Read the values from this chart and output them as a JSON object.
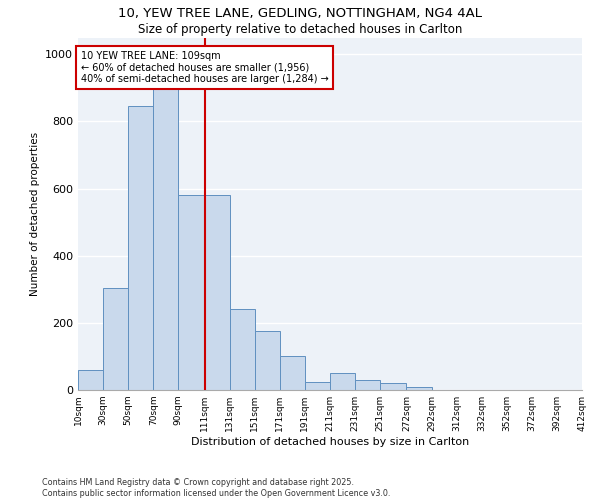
{
  "title_line1": "10, YEW TREE LANE, GEDLING, NOTTINGHAM, NG4 4AL",
  "title_line2": "Size of property relative to detached houses in Carlton",
  "xlabel": "Distribution of detached houses by size in Carlton",
  "ylabel": "Number of detached properties",
  "property_label": "10 YEW TREE LANE: 109sqm",
  "annotation_line2": "← 60% of detached houses are smaller (1,956)",
  "annotation_line3": "40% of semi-detached houses are larger (1,284) →",
  "bar_color": "#c9d9ec",
  "bar_edge_color": "#6090c0",
  "vline_color": "#cc0000",
  "annotation_box_edgecolor": "#cc0000",
  "background_color": "#edf2f8",
  "bar_heights": [
    60,
    305,
    845,
    920,
    580,
    580,
    240,
    175,
    100,
    25,
    50,
    30,
    20,
    10,
    0,
    0,
    0,
    0,
    0,
    0
  ],
  "bin_edges": [
    10,
    30,
    50,
    70,
    90,
    111,
    131,
    151,
    171,
    191,
    211,
    231,
    251,
    272,
    292,
    312,
    332,
    352,
    372,
    392,
    412
  ],
  "tick_labels": [
    "10sqm",
    "30sqm",
    "50sqm",
    "70sqm",
    "90sqm",
    "111sqm",
    "131sqm",
    "151sqm",
    "171sqm",
    "191sqm",
    "211sqm",
    "231sqm",
    "251sqm",
    "272sqm",
    "292sqm",
    "312sqm",
    "332sqm",
    "352sqm",
    "372sqm",
    "392sqm",
    "412sqm"
  ],
  "yticks": [
    0,
    200,
    400,
    600,
    800,
    1000
  ],
  "ylim": [
    0,
    1050
  ],
  "footnote1": "Contains HM Land Registry data © Crown copyright and database right 2025.",
  "footnote2": "Contains public sector information licensed under the Open Government Licence v3.0."
}
